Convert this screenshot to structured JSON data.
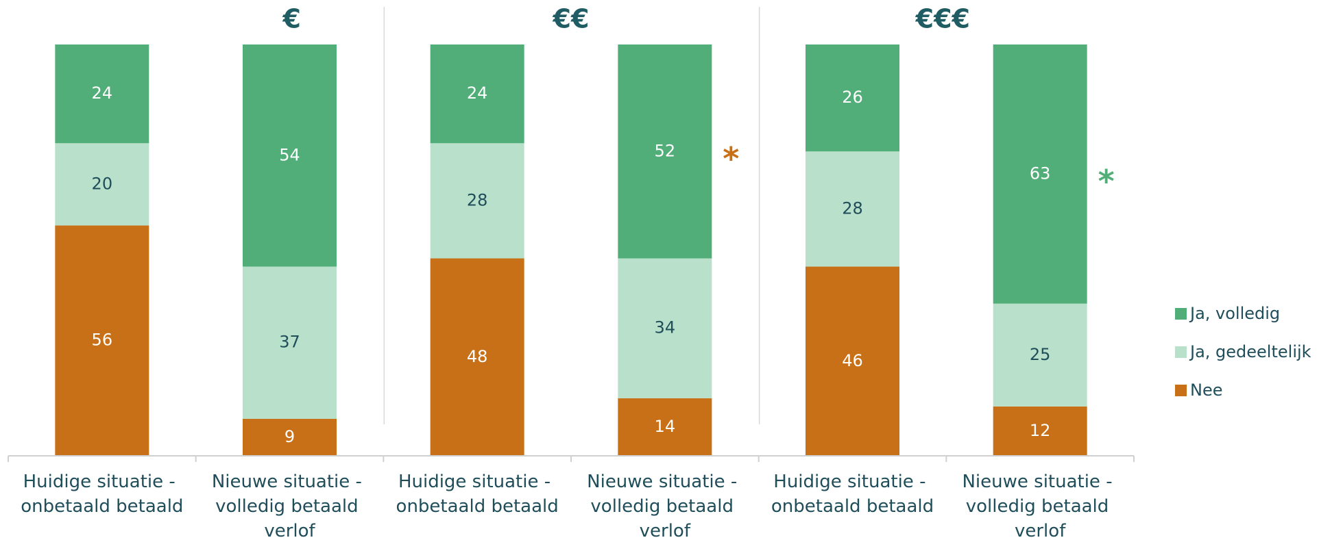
{
  "chart_data": {
    "type": "stacked_bar",
    "groups": [
      "€",
      "€€",
      "€€€"
    ],
    "categories": [
      "Huidige situatie - onbetaald betaald",
      "Nieuwe situatie - volledig betaald verlof",
      "Huidige situatie - onbetaald betaald",
      "Nieuwe situatie - volledig betaald verlof",
      "Huidige situatie - onbetaald betaald",
      "Nieuwe situatie - volledig betaald verlof"
    ],
    "series": [
      {
        "name": "Nee",
        "color": "#c87018",
        "values": [
          56,
          9,
          48,
          14,
          46,
          12
        ]
      },
      {
        "name": "Ja, gedeeltelijk",
        "color": "#b9e0ca",
        "values": [
          20,
          37,
          28,
          34,
          28,
          25
        ]
      },
      {
        "name": "Ja, volledig",
        "color": "#52ae78",
        "values": [
          24,
          54,
          24,
          52,
          26,
          63
        ]
      }
    ],
    "ylim": [
      0,
      100
    ],
    "legend": "right",
    "annotations": [
      {
        "text": "*",
        "color": "#c87018",
        "category": 3
      },
      {
        "text": "*",
        "color": "#52ae78",
        "category": 5
      }
    ]
  }
}
